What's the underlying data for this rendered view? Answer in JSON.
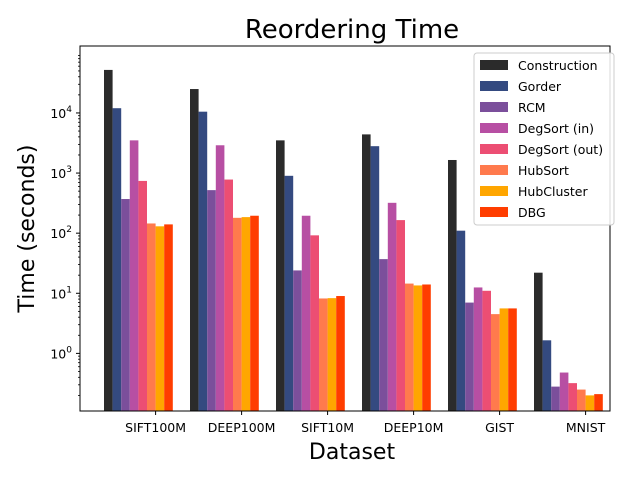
{
  "chart_data": {
    "type": "bar",
    "title": "Reordering Time",
    "xlabel": "Dataset",
    "ylabel": "Time (seconds)",
    "yscale": "log",
    "ylim": [
      0.11,
      130000
    ],
    "yticks": [
      {
        "value": 1,
        "base": "10",
        "exp": "0"
      },
      {
        "value": 10,
        "base": "10",
        "exp": "1"
      },
      {
        "value": 100,
        "base": "10",
        "exp": "2"
      },
      {
        "value": 1000,
        "base": "10",
        "exp": "3"
      },
      {
        "value": 10000,
        "base": "10",
        "exp": "4"
      }
    ],
    "categories": [
      "SIFT100M",
      "DEEP100M",
      "SIFT10M",
      "DEEP10M",
      "GIST",
      "MNIST"
    ],
    "legend_position": "top-right",
    "series": [
      {
        "name": "Construction",
        "color": "#2b2b2b",
        "values": [
          52000,
          25000,
          3500,
          4400,
          1650,
          22
        ]
      },
      {
        "name": "Gorder",
        "color": "#344a80",
        "values": [
          12000,
          10500,
          900,
          2800,
          110,
          1.65
        ]
      },
      {
        "name": "RCM",
        "color": "#7b4f9b",
        "values": [
          370,
          520,
          24,
          37,
          7,
          0.28
        ]
      },
      {
        "name": "DegSort (in)",
        "color": "#b74fa3",
        "values": [
          3500,
          2900,
          195,
          320,
          12.5,
          0.48
        ]
      },
      {
        "name": "DegSort (out)",
        "color": "#ec4e73",
        "values": [
          740,
          780,
          92,
          165,
          11,
          0.32
        ]
      },
      {
        "name": "HubSort",
        "color": "#ff7a4d",
        "values": [
          145,
          180,
          8.2,
          14.5,
          4.5,
          0.25
        ]
      },
      {
        "name": "HubCluster",
        "color": "#ffa600",
        "values": [
          130,
          185,
          8.3,
          13.5,
          5.6,
          0.2
        ]
      },
      {
        "name": "DBG",
        "color": "#ff3d00",
        "values": [
          140,
          195,
          9,
          14,
          5.6,
          0.21
        ]
      }
    ]
  }
}
